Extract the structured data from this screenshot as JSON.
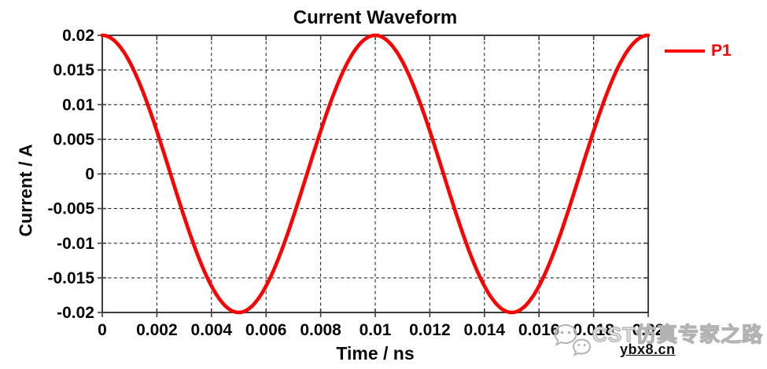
{
  "chart": {
    "title": "Current Waveform",
    "xlabel": "Time / ns",
    "ylabel": "Current / A",
    "legend": [
      {
        "label": "P1",
        "color": "#fe0000"
      }
    ]
  },
  "chart_data": {
    "type": "line",
    "title": "Current Waveform",
    "xlabel": "Time / ns",
    "ylabel": "Current / A",
    "xlim": [
      0,
      0.02
    ],
    "ylim": [
      -0.02,
      0.02
    ],
    "grid": true,
    "grid_style": "dashed",
    "legend_position": "top-right-outside",
    "x_ticks": {
      "values": [
        0,
        0.002,
        0.004,
        0.006,
        0.008,
        0.01,
        0.012,
        0.014,
        0.016,
        0.018,
        0.02
      ],
      "labels": [
        "0",
        "0.002",
        "0.004",
        "0.006",
        "0.008",
        "0.01",
        "0.012",
        "0.014",
        "0.016",
        "0.018",
        "0.02"
      ]
    },
    "y_ticks": {
      "values": [
        0.02,
        0.015,
        0.01,
        0.005,
        0,
        -0.005,
        -0.01,
        -0.015,
        -0.02
      ],
      "labels": [
        "0.02",
        "0.015",
        "0.01",
        "0.005",
        "0",
        "-0.005",
        "-0.01",
        "-0.015",
        "-0.02"
      ]
    },
    "series": [
      {
        "name": "P1",
        "color": "#fe0000",
        "line_width": 4.6,
        "model": {
          "shape": "cosine",
          "amplitude": 0.02,
          "period": 0.01,
          "phase": 0
        },
        "x": [
          0,
          0.001,
          0.002,
          0.003,
          0.004,
          0.005,
          0.006,
          0.007,
          0.008,
          0.009,
          0.01,
          0.011,
          0.012,
          0.013,
          0.014,
          0.015,
          0.016,
          0.017,
          0.018,
          0.019,
          0.02
        ],
        "y": [
          0.02,
          0.01618,
          0.00618,
          -0.00618,
          -0.01618,
          -0.02,
          -0.01618,
          -0.00618,
          0.00618,
          0.01618,
          0.02,
          0.01618,
          0.00618,
          -0.00618,
          -0.01618,
          -0.02,
          -0.01618,
          -0.00618,
          0.00618,
          0.01618,
          0.02
        ]
      }
    ]
  },
  "watermark": {
    "icon": "wechat-icon",
    "brand": "CST仿真专家之路",
    "url": "ybx8.cn"
  },
  "colors": {
    "curve": "#fe0000",
    "grid": "#2b2b2b",
    "axis": "#3d3d3d",
    "text": "#0b0b0b",
    "watermark_gray": "#b3b3b3",
    "background": "#ffffff"
  }
}
